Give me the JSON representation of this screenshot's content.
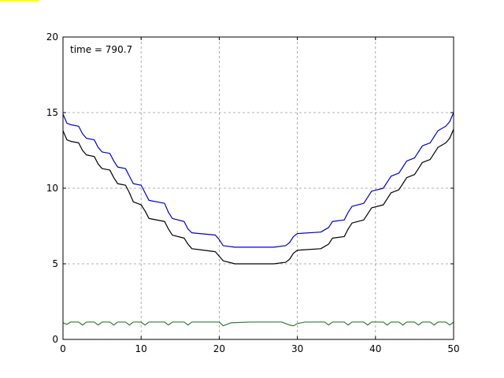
{
  "marker": {
    "color": "#ffff00"
  },
  "chart_data": {
    "type": "line",
    "title": "",
    "xlabel": "",
    "ylabel": "",
    "xlim": [
      0,
      50
    ],
    "ylim": [
      0,
      20
    ],
    "xticks": [
      0,
      10,
      20,
      30,
      40,
      50
    ],
    "yticks": [
      0,
      5,
      10,
      15,
      20
    ],
    "grid": true,
    "annotation": "time = 790.7",
    "series": [
      {
        "color": "#0000cc",
        "points": [
          [
            0,
            14.9
          ],
          [
            0.5,
            14.3
          ],
          [
            1,
            14.2
          ],
          [
            2,
            14.1
          ],
          [
            2.5,
            13.6
          ],
          [
            3,
            13.3
          ],
          [
            4,
            13.2
          ],
          [
            4.5,
            12.7
          ],
          [
            5,
            12.4
          ],
          [
            6,
            12.3
          ],
          [
            6.5,
            11.8
          ],
          [
            7,
            11.4
          ],
          [
            8,
            11.3
          ],
          [
            8.5,
            10.8
          ],
          [
            9,
            10.3
          ],
          [
            10,
            10.2
          ],
          [
            10.5,
            9.7
          ],
          [
            11,
            9.2
          ],
          [
            13,
            9.0
          ],
          [
            13.5,
            8.4
          ],
          [
            14,
            8.0
          ],
          [
            15.5,
            7.8
          ],
          [
            16,
            7.3
          ],
          [
            16.5,
            7.05
          ],
          [
            19.5,
            6.9
          ],
          [
            20,
            6.6
          ],
          [
            20.5,
            6.2
          ],
          [
            22,
            6.1
          ],
          [
            27,
            6.1
          ],
          [
            28.5,
            6.2
          ],
          [
            29,
            6.4
          ],
          [
            29.5,
            6.8
          ],
          [
            30,
            7.0
          ],
          [
            33,
            7.1
          ],
          [
            34,
            7.4
          ],
          [
            34.5,
            7.8
          ],
          [
            36,
            7.9
          ],
          [
            36.5,
            8.4
          ],
          [
            37,
            8.8
          ],
          [
            38.5,
            9.0
          ],
          [
            39,
            9.4
          ],
          [
            39.5,
            9.8
          ],
          [
            41,
            10.0
          ],
          [
            41.5,
            10.4
          ],
          [
            42,
            10.8
          ],
          [
            43,
            11.0
          ],
          [
            43.5,
            11.4
          ],
          [
            44,
            11.8
          ],
          [
            45,
            12.0
          ],
          [
            45.5,
            12.4
          ],
          [
            46,
            12.8
          ],
          [
            47,
            13.0
          ],
          [
            47.5,
            13.4
          ],
          [
            48,
            13.8
          ],
          [
            49,
            14.1
          ],
          [
            49.5,
            14.4
          ],
          [
            50,
            15.0
          ]
        ]
      },
      {
        "color": "#000000",
        "points": [
          [
            0,
            13.8
          ],
          [
            0.5,
            13.2
          ],
          [
            1,
            13.1
          ],
          [
            2,
            13.0
          ],
          [
            2.5,
            12.5
          ],
          [
            3,
            12.2
          ],
          [
            4,
            12.1
          ],
          [
            4.5,
            11.6
          ],
          [
            5,
            11.3
          ],
          [
            6,
            11.2
          ],
          [
            6.5,
            10.7
          ],
          [
            7,
            10.3
          ],
          [
            8,
            10.2
          ],
          [
            8.5,
            9.7
          ],
          [
            9,
            9.1
          ],
          [
            10,
            8.9
          ],
          [
            10.5,
            8.5
          ],
          [
            11,
            8.0
          ],
          [
            13,
            7.8
          ],
          [
            13.5,
            7.3
          ],
          [
            14,
            6.9
          ],
          [
            15.5,
            6.7
          ],
          [
            16,
            6.3
          ],
          [
            16.5,
            6.0
          ],
          [
            19.5,
            5.8
          ],
          [
            20,
            5.5
          ],
          [
            20.5,
            5.2
          ],
          [
            22,
            5.0
          ],
          [
            27,
            5.0
          ],
          [
            28.5,
            5.1
          ],
          [
            29,
            5.3
          ],
          [
            29.5,
            5.7
          ],
          [
            30,
            5.9
          ],
          [
            33,
            6.0
          ],
          [
            34,
            6.3
          ],
          [
            34.5,
            6.7
          ],
          [
            36,
            6.8
          ],
          [
            36.5,
            7.3
          ],
          [
            37,
            7.7
          ],
          [
            38.5,
            7.9
          ],
          [
            39,
            8.3
          ],
          [
            39.5,
            8.7
          ],
          [
            41,
            8.9
          ],
          [
            41.5,
            9.3
          ],
          [
            42,
            9.7
          ],
          [
            43,
            9.9
          ],
          [
            43.5,
            10.3
          ],
          [
            44,
            10.7
          ],
          [
            45,
            10.9
          ],
          [
            45.5,
            11.3
          ],
          [
            46,
            11.7
          ],
          [
            47,
            11.9
          ],
          [
            47.5,
            12.3
          ],
          [
            48,
            12.7
          ],
          [
            49,
            13.0
          ],
          [
            49.5,
            13.3
          ],
          [
            50,
            13.9
          ]
        ]
      },
      {
        "color": "#2e7d32",
        "points": [
          [
            0,
            1.1
          ],
          [
            0.5,
            1.0
          ],
          [
            1,
            1.15
          ],
          [
            2,
            1.15
          ],
          [
            2.5,
            0.95
          ],
          [
            3,
            1.15
          ],
          [
            4,
            1.15
          ],
          [
            4.5,
            0.95
          ],
          [
            5,
            1.15
          ],
          [
            6,
            1.15
          ],
          [
            6.5,
            0.95
          ],
          [
            7,
            1.15
          ],
          [
            8,
            1.15
          ],
          [
            8.5,
            0.95
          ],
          [
            9,
            1.15
          ],
          [
            10,
            1.15
          ],
          [
            10.5,
            0.95
          ],
          [
            11,
            1.15
          ],
          [
            13,
            1.15
          ],
          [
            13.5,
            0.95
          ],
          [
            14,
            1.15
          ],
          [
            15.5,
            1.15
          ],
          [
            16,
            0.95
          ],
          [
            16.5,
            1.15
          ],
          [
            20,
            1.15
          ],
          [
            20.5,
            0.9
          ],
          [
            21.5,
            1.1
          ],
          [
            24,
            1.15
          ],
          [
            28,
            1.15
          ],
          [
            29,
            0.95
          ],
          [
            29.5,
            0.9
          ],
          [
            30,
            1.05
          ],
          [
            31,
            1.15
          ],
          [
            33.5,
            1.15
          ],
          [
            34,
            0.95
          ],
          [
            34.5,
            1.15
          ],
          [
            36,
            1.15
          ],
          [
            36.5,
            0.95
          ],
          [
            37,
            1.15
          ],
          [
            38.5,
            1.15
          ],
          [
            39,
            0.95
          ],
          [
            39.5,
            1.15
          ],
          [
            41,
            1.15
          ],
          [
            41.5,
            0.95
          ],
          [
            42,
            1.15
          ],
          [
            43,
            1.15
          ],
          [
            43.5,
            0.95
          ],
          [
            44,
            1.15
          ],
          [
            45,
            1.15
          ],
          [
            45.5,
            0.95
          ],
          [
            46,
            1.15
          ],
          [
            47,
            1.15
          ],
          [
            47.5,
            0.95
          ],
          [
            48,
            1.15
          ],
          [
            49,
            1.15
          ],
          [
            49.5,
            0.95
          ],
          [
            50,
            1.15
          ]
        ]
      }
    ]
  }
}
